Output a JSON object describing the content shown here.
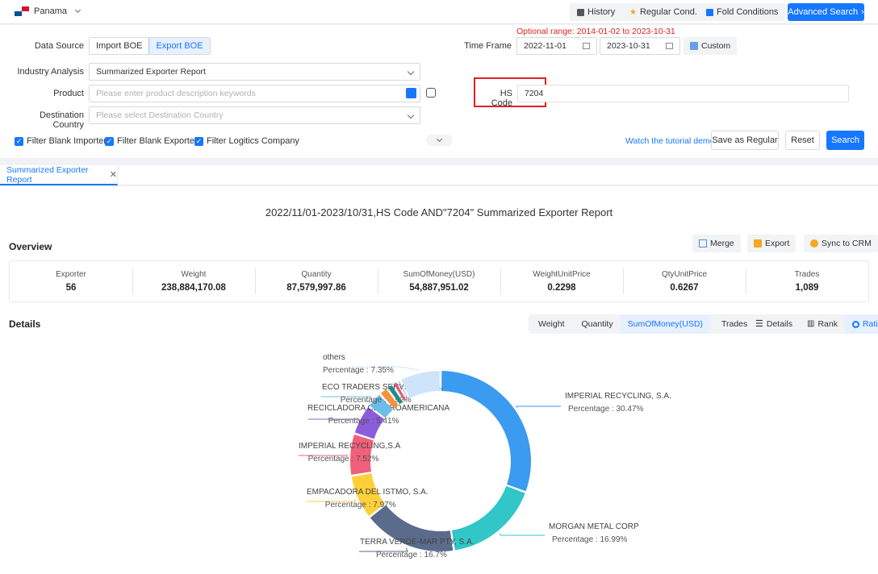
{
  "topbar": {
    "country": "Panama",
    "history": "History",
    "regular_cond": "Regular Cond.",
    "fold_conditions": "Fold Conditions",
    "advanced_search": "Advanced Search"
  },
  "search": {
    "optional_range_label": "Optional range:",
    "optional_range_value": "2014-01-02 to 2023-10-31",
    "data_source_label": "Data Source",
    "import_boe": "Import BOE",
    "export_boe": "Export BOE",
    "time_frame_label": "Time Frame",
    "date_from": "2022-11-01",
    "date_to": "2023-10-31",
    "custom": "Custom",
    "industry_label": "Industry Analysis",
    "industry_value": "Summarized Exporter Report",
    "product_label": "Product",
    "product_placeholder": "Please enter product description keywords",
    "hs_code_label": "HS Code",
    "hs_code_value": "7204",
    "destination_label": "Destination Country",
    "destination_placeholder": "Please select Destination Country",
    "filter_importers": "Filter Blank Importers",
    "filter_exporters": "Filter Blank Exporters",
    "filter_logistics": "Filter Logitics Company",
    "tutorial": "Watch the tutorial demo",
    "save_regular": "Save as Regular",
    "reset": "Reset",
    "search": "Search"
  },
  "tabs": {
    "active": "Summarized Exporter Report"
  },
  "report": {
    "title": "2022/11/01-2023/10/31,HS Code AND\"7204\" Summarized Exporter Report",
    "overview_label": "Overview",
    "merge": "Merge",
    "export": "Export",
    "sync_crm": "Sync to CRM",
    "details_label": "Details",
    "stats": [
      {
        "key": "Exporter",
        "value": "56"
      },
      {
        "key": "Weight",
        "value": "238,884,170.08"
      },
      {
        "key": "Quantity",
        "value": "87,579,997.86"
      },
      {
        "key": "SumOfMoney(USD)",
        "value": "54,887,951.02"
      },
      {
        "key": "WeightUnitPrice",
        "value": "0.2298"
      },
      {
        "key": "QtyUnitPrice",
        "value": "0.6267"
      },
      {
        "key": "Trades",
        "value": "1,089"
      }
    ],
    "metrics": [
      "Weight",
      "Quantity",
      "SumOfMoney(USD)",
      "Trades"
    ],
    "views": [
      "Details",
      "Rank",
      "Ratio"
    ]
  },
  "chart_data": {
    "type": "pie",
    "variant": "donut",
    "percentage_label": "Percentage",
    "slices": [
      {
        "name": "IMPERIAL RECYCLING, S.A.",
        "value": 30.47,
        "color": "#3a9bf0"
      },
      {
        "name": "MORGAN METAL CORP",
        "value": 16.99,
        "color": "#31c6c7"
      },
      {
        "name": "TERRA VERDE-MAR PTY, S.A.",
        "value": 16.7,
        "color": "#5a6b8c"
      },
      {
        "name": "EMPACADORA DEL ISTMO, S.A.",
        "value": 7.97,
        "color": "#fdd03a"
      },
      {
        "name": "IMPERIAL RECYCLING,S.A",
        "value": 7.52,
        "color": "#f0607a"
      },
      {
        "name": "RECICLADORA CENTROAMERICANA",
        "value": 5.41,
        "color": "#8b5cdb"
      },
      {
        "name": "ECO TRADERS SERVICES, S.A.",
        "value": 2.92,
        "color": "#6cbde8"
      },
      {
        "name": "",
        "value": 1.6,
        "color": "#f7913d"
      },
      {
        "name": "",
        "value": 1.2,
        "color": "#1d8e8a"
      },
      {
        "name": "",
        "value": 0.9,
        "color": "#e9557a"
      },
      {
        "name": "",
        "value": 0.6,
        "color": "#b9c3d6"
      },
      {
        "name": "others",
        "value": 7.35,
        "color": "#cde4fb"
      }
    ]
  }
}
